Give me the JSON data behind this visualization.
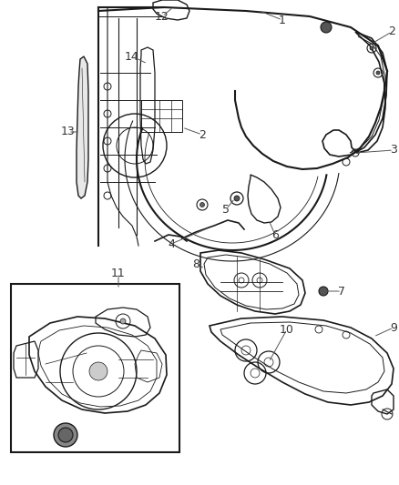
{
  "background_color": "#ffffff",
  "line_color": "#1a1a1a",
  "gray_color": "#666666",
  "label_color": "#333333",
  "fig_width": 4.38,
  "fig_height": 5.33,
  "dpi": 100
}
